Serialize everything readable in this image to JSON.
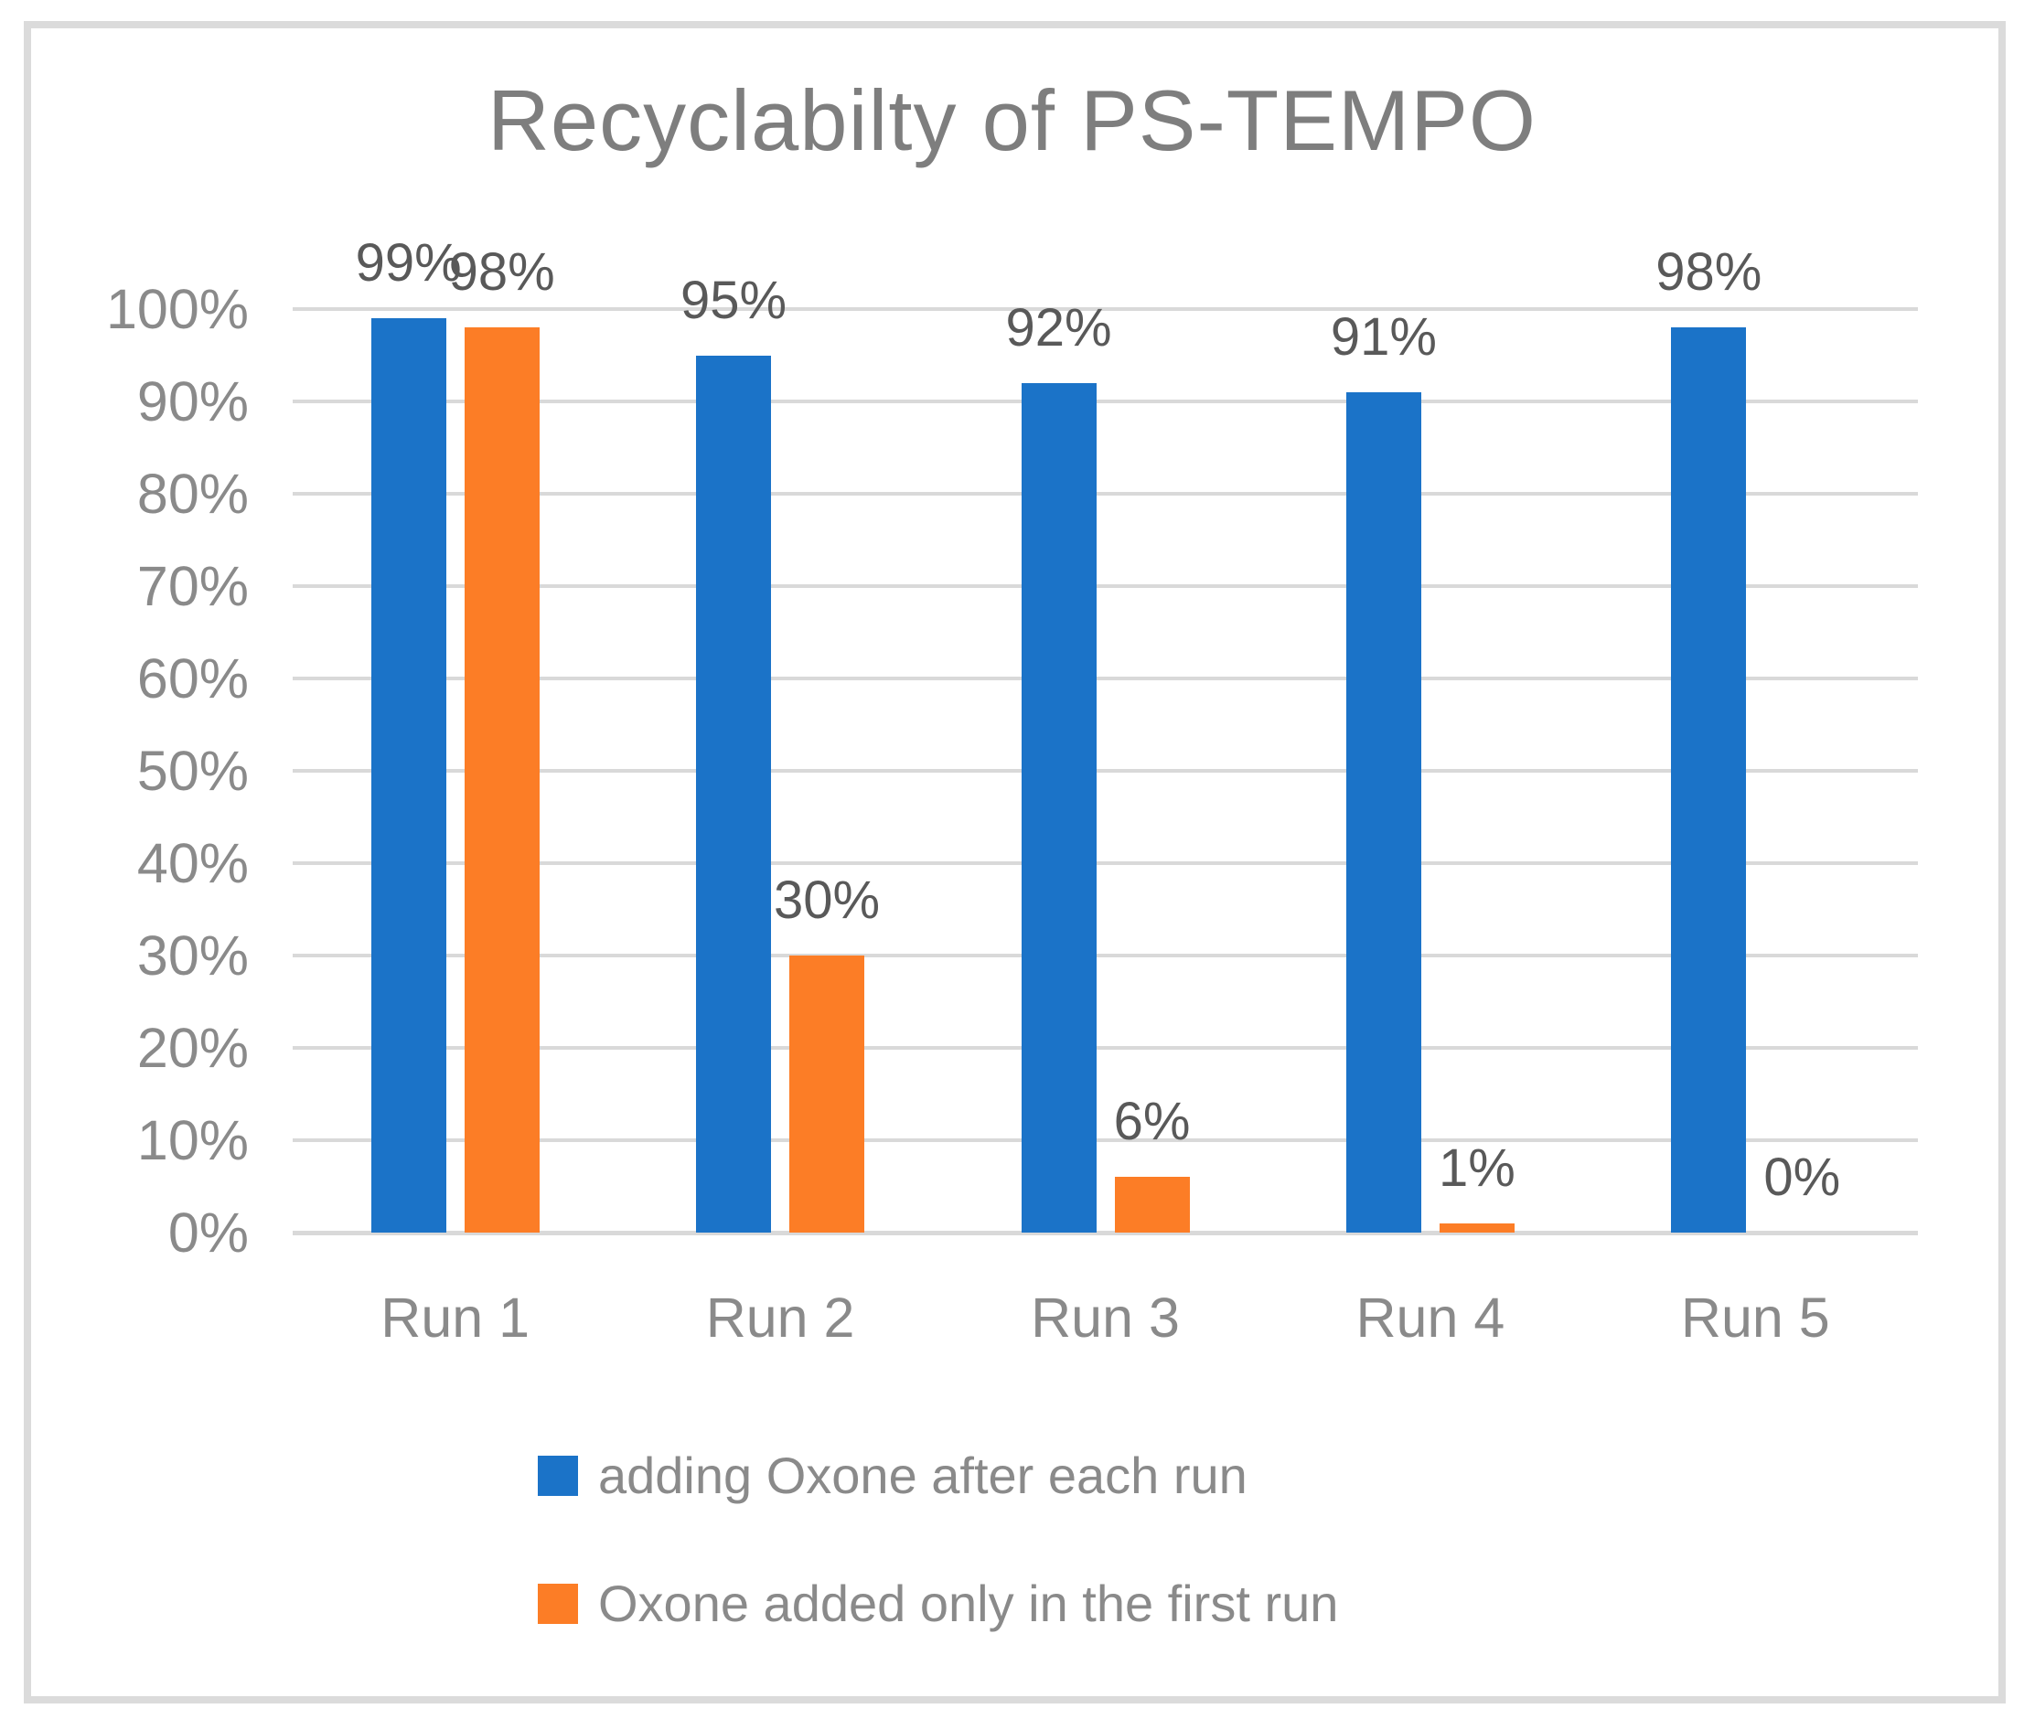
{
  "chart_data": {
    "type": "bar",
    "title": "Recyclabilty of PS-TEMPO",
    "categories": [
      "Run 1",
      "Run 2",
      "Run 3",
      "Run 4",
      "Run 5"
    ],
    "series": [
      {
        "name": "adding Oxone after each run",
        "color": "#1B73C8",
        "values": [
          99,
          95,
          92,
          91,
          98
        ],
        "labels": [
          "99%",
          "95%",
          "92%",
          "91%",
          "98%"
        ]
      },
      {
        "name": "Oxone added only in the first run",
        "color": "#FC7D26",
        "values": [
          98,
          30,
          6,
          1,
          0
        ],
        "labels": [
          "98%",
          "30%",
          "6%",
          "1%",
          "0%"
        ]
      }
    ],
    "y_ticks": [
      "100%",
      "90%",
      "80%",
      "70%",
      "60%",
      "50%",
      "40%",
      "30%",
      "20%",
      "10%",
      "0%"
    ],
    "ylim": [
      0,
      100
    ],
    "grid": true,
    "legend_position": "bottom-left",
    "colors": {
      "gridline": "#D9D9D9",
      "border": "#DBDBDB",
      "axis_text": "#8A8A8A",
      "data_label": "#595959",
      "title_text": "#7E7E7E"
    }
  }
}
